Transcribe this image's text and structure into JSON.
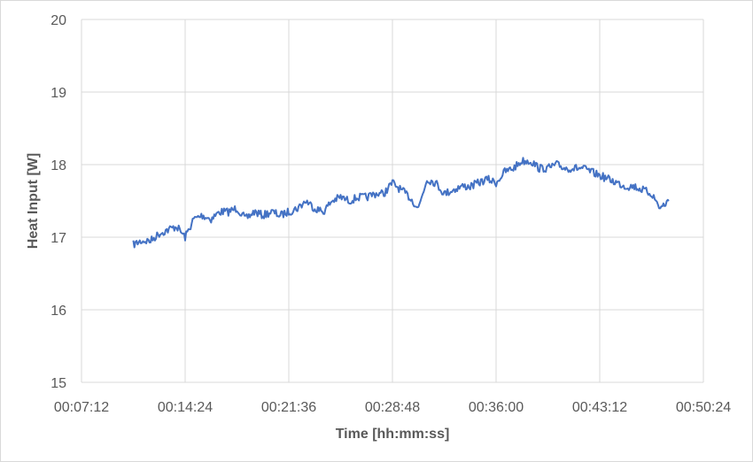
{
  "chart_data": {
    "type": "line",
    "title": "",
    "xlabel": "Time [hh:mm:ss]",
    "ylabel": "Heat Input [W]",
    "x_ticks": [
      "00:07:12",
      "00:14:24",
      "00:21:36",
      "00:28:48",
      "00:36:00",
      "00:43:12",
      "00:50:24"
    ],
    "xlim": [
      "00:07:12",
      "00:50:24"
    ],
    "y_ticks": [
      15,
      16,
      17,
      18,
      19,
      20
    ],
    "ylim": [
      15,
      20
    ],
    "grid": true,
    "legend": "none",
    "series": [
      {
        "color": "#4472c4",
        "x": [
          "00:10:48",
          "00:11:24",
          "00:12:00",
          "00:12:36",
          "00:13:12",
          "00:13:48",
          "00:14:24",
          "00:15:00",
          "00:15:36",
          "00:16:12",
          "00:16:48",
          "00:17:24",
          "00:18:00",
          "00:18:36",
          "00:19:12",
          "00:19:48",
          "00:20:24",
          "00:21:00",
          "00:21:36",
          "00:22:12",
          "00:22:48",
          "00:23:24",
          "00:24:00",
          "00:24:36",
          "00:25:12",
          "00:25:48",
          "00:26:24",
          "00:27:00",
          "00:27:36",
          "00:28:12",
          "00:28:48",
          "00:29:24",
          "00:30:00",
          "00:30:36",
          "00:31:12",
          "00:31:48",
          "00:32:24",
          "00:33:00",
          "00:33:36",
          "00:34:12",
          "00:34:48",
          "00:35:24",
          "00:36:00",
          "00:36:36",
          "00:37:12",
          "00:37:48",
          "00:38:24",
          "00:39:00",
          "00:39:36",
          "00:40:12",
          "00:40:48",
          "00:41:24",
          "00:42:00",
          "00:42:36",
          "00:43:12",
          "00:43:48",
          "00:44:24",
          "00:45:00",
          "00:45:36",
          "00:46:12",
          "00:46:48",
          "00:47:24",
          "00:48:00"
        ],
        "y": [
          16.9,
          16.95,
          16.95,
          17.05,
          17.1,
          17.15,
          17.0,
          17.25,
          17.3,
          17.25,
          17.35,
          17.35,
          17.4,
          17.25,
          17.35,
          17.3,
          17.35,
          17.3,
          17.35,
          17.4,
          17.5,
          17.4,
          17.35,
          17.5,
          17.55,
          17.5,
          17.55,
          17.55,
          17.6,
          17.6,
          17.75,
          17.65,
          17.55,
          17.4,
          17.8,
          17.75,
          17.6,
          17.65,
          17.7,
          17.7,
          17.75,
          17.8,
          17.75,
          17.9,
          17.95,
          18.05,
          18.05,
          17.95,
          17.95,
          18.0,
          17.95,
          17.95,
          17.95,
          17.9,
          17.85,
          17.8,
          17.75,
          17.7,
          17.7,
          17.65,
          17.6,
          17.4,
          17.5
        ]
      }
    ]
  }
}
